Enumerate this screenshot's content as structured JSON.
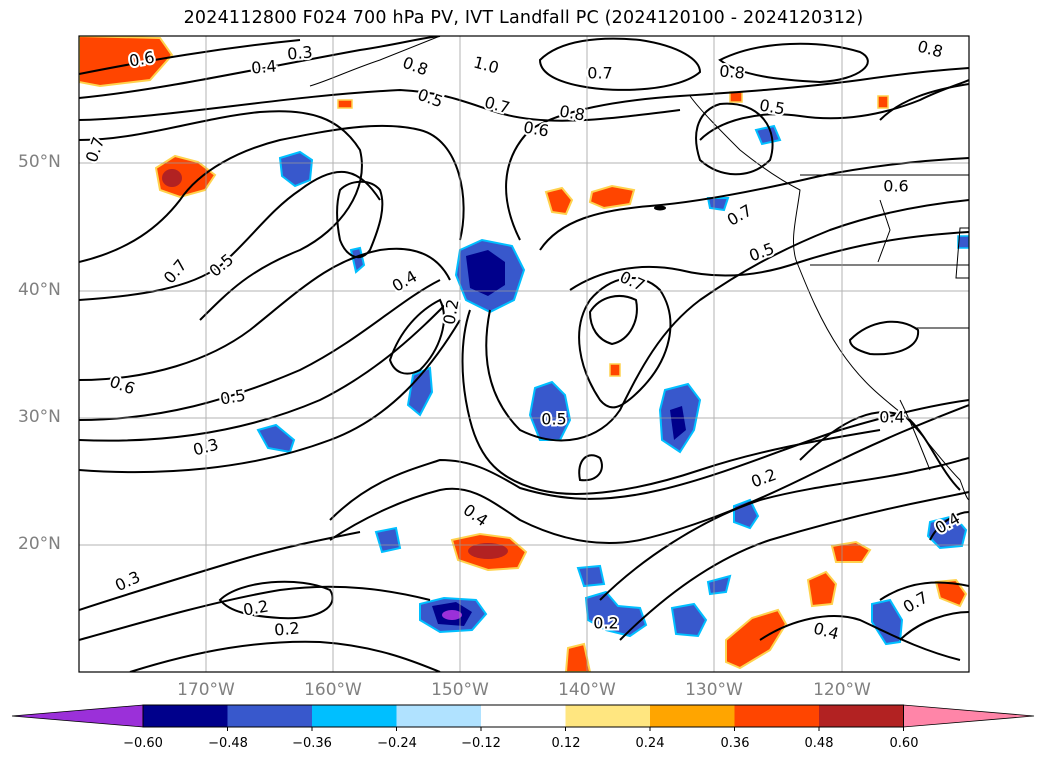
{
  "title": "2024112800 F024 700 hPa PV, IVT Landfall PC (2024120100 - 2024120312)",
  "map": {
    "lat_labels": [
      "50°N",
      "40°N",
      "30°N",
      "20°N"
    ],
    "lon_labels": [
      "170°W",
      "160°W",
      "150°W",
      "140°W",
      "130°W",
      "120°W"
    ],
    "contour_labels": [
      "0.6",
      "0.3",
      "0.4",
      "1.0",
      "0.7",
      "0.8",
      "0.5",
      "0.7",
      "0.8",
      "0.6",
      "0.5",
      "0.7",
      "0.8",
      "0.8",
      "0.7",
      "0.4",
      "0.2",
      "0.7",
      "0.5",
      "0.6",
      "0.7",
      "0.5",
      "0.6",
      "0.5",
      "0.3",
      "0.5",
      "0.4",
      "0.4",
      "0.2",
      "0.3",
      "0.2",
      "0.2",
      "0.2",
      "0.4",
      "0.7",
      "0.4"
    ]
  },
  "colorbar": {
    "ticks": [
      "−0.60",
      "−0.48",
      "−0.36",
      "−0.24",
      "−0.12",
      "0.12",
      "0.24",
      "0.36",
      "0.48",
      "0.60"
    ],
    "colors": [
      "#9b30d9",
      "#00008b",
      "#3858cc",
      "#00bfff",
      "#b0e2ff",
      "#ffffff",
      "#ffe680",
      "#ffa500",
      "#ff4500",
      "#b22222",
      "#ff85a8"
    ]
  }
}
